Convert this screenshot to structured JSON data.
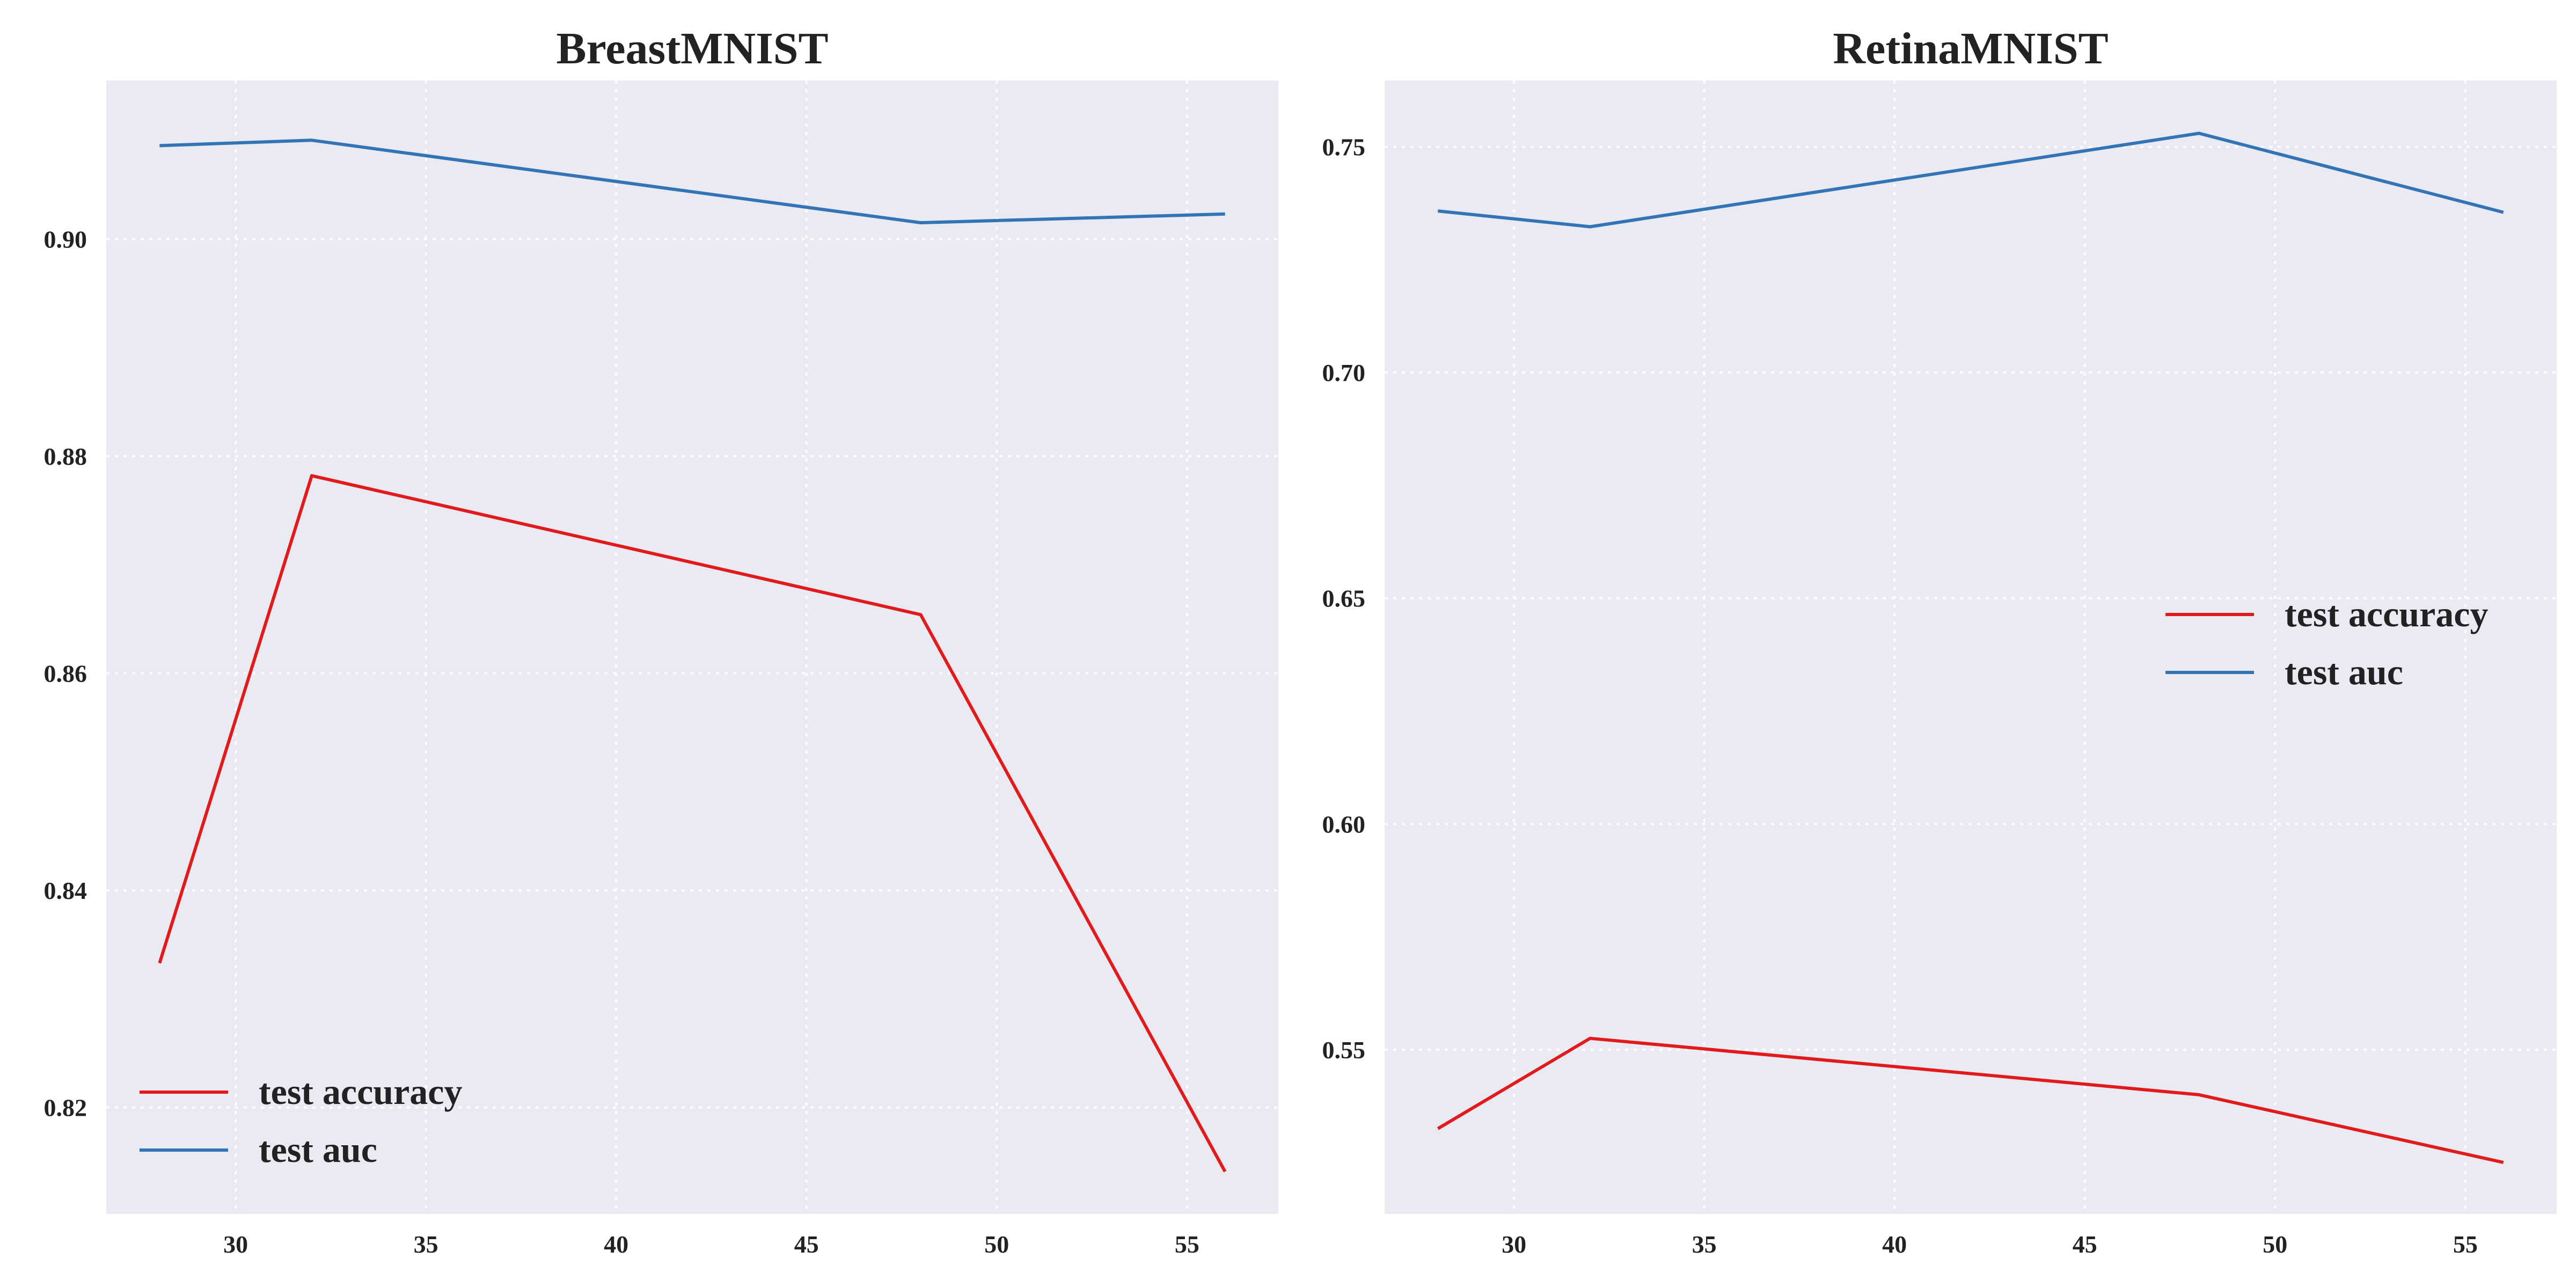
{
  "chart_data": [
    {
      "type": "line",
      "title": "BreastMNIST",
      "xlabel": "",
      "ylabel": "",
      "x": [
        28,
        32,
        48,
        56
      ],
      "xlim": [
        26.6,
        57.4
      ],
      "ylim": [
        0.8102,
        0.9146
      ],
      "xticks": [
        30,
        35,
        40,
        45,
        50,
        55
      ],
      "yticks": [
        0.82,
        0.84,
        0.86,
        0.88,
        0.9
      ],
      "ytick_labels": [
        "0.82",
        "0.84",
        "0.86",
        "0.88",
        "0.90"
      ],
      "grid": true,
      "legend": "lower-left",
      "series": [
        {
          "name": "test accuracy",
          "color": "#e31a1c",
          "values": [
            0.8333,
            0.8782,
            0.8654,
            0.8141
          ]
        },
        {
          "name": "test auc",
          "color": "#3274b5",
          "values": [
            0.9086,
            0.9091,
            0.9015,
            0.9023
          ]
        }
      ]
    },
    {
      "type": "line",
      "title": "RetinaMNIST",
      "xlabel": "",
      "ylabel": "",
      "x": [
        28,
        32,
        48,
        56
      ],
      "xlim": [
        26.6,
        57.4
      ],
      "ylim": [
        0.5136,
        0.7647
      ],
      "xticks": [
        30,
        35,
        40,
        45,
        50,
        55
      ],
      "yticks": [
        0.55,
        0.6,
        0.65,
        0.7,
        0.75
      ],
      "ytick_labels": [
        "0.55",
        "0.60",
        "0.65",
        "0.70",
        "0.75"
      ],
      "grid": true,
      "legend": "center-right",
      "series": [
        {
          "name": "test accuracy",
          "color": "#e31a1c",
          "values": [
            0.5325,
            0.5525,
            0.54,
            0.525
          ]
        },
        {
          "name": "test auc",
          "color": "#3274b5",
          "values": [
            0.7358,
            0.7323,
            0.753,
            0.7355
          ]
        }
      ]
    }
  ]
}
